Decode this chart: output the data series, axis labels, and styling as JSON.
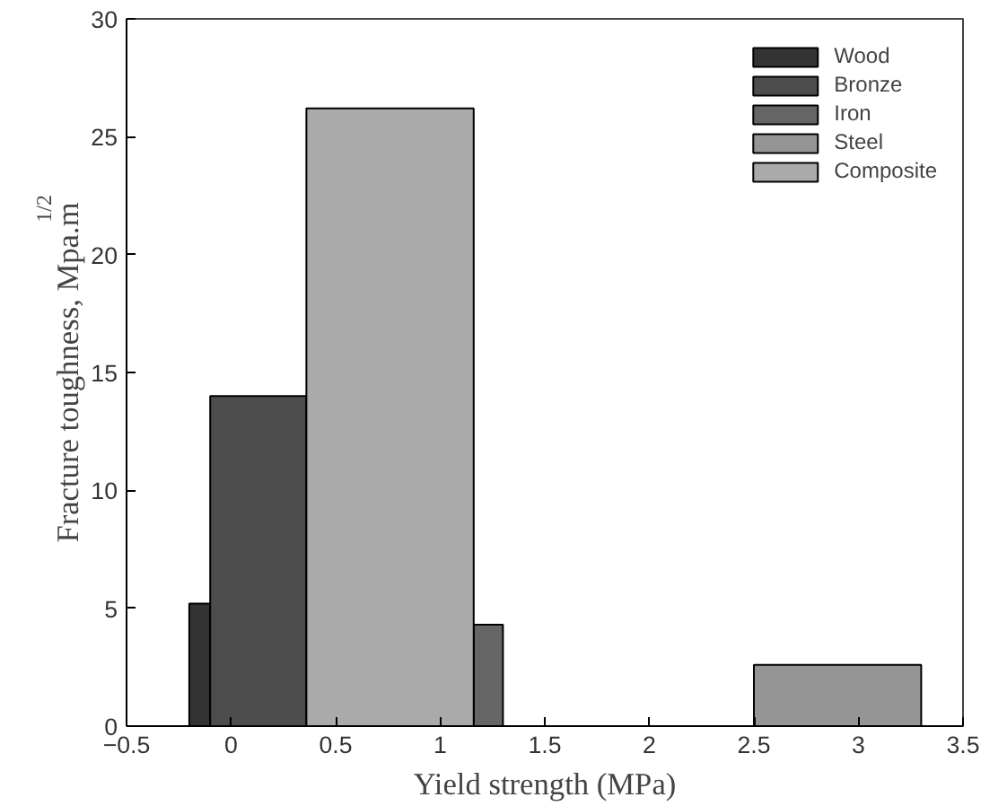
{
  "chart_data": {
    "type": "histogram",
    "xlabel": "Yield strength (MPa)",
    "ylabel": "Fracture toughness, Mpa.m$^{1/2}$",
    "bins": [
      -0.2,
      -0.1,
      0.36,
      1.16,
      1.3,
      2.5,
      3.3
    ],
    "series": [
      {
        "name": "Wood",
        "color": "#333333",
        "values": [
          5.2,
          null,
          null,
          null,
          null,
          null
        ]
      },
      {
        "name": "Bronze",
        "color": "#4d4d4d",
        "values": [
          null,
          14,
          null,
          null,
          null,
          null
        ]
      },
      {
        "name": "Iron",
        "color": "#666666",
        "values": [
          null,
          null,
          null,
          4.3,
          null,
          null
        ]
      },
      {
        "name": "Steel",
        "color": "#959595",
        "values": [
          null,
          null,
          null,
          null,
          null,
          2.6
        ]
      },
      {
        "name": "Composite",
        "color": "#aaaaaa",
        "values": [
          null,
          null,
          26.2,
          null,
          null,
          null
        ]
      }
    ],
    "xlim": [
      -0.5,
      3.5
    ],
    "xticks": [
      -0.5,
      0,
      0.5,
      1,
      1.5,
      2,
      2.5,
      3,
      3.5
    ],
    "ylim": [
      0,
      30
    ],
    "yticks": [
      0,
      5,
      10,
      15,
      20,
      25,
      30
    ],
    "legend": "top right"
  }
}
